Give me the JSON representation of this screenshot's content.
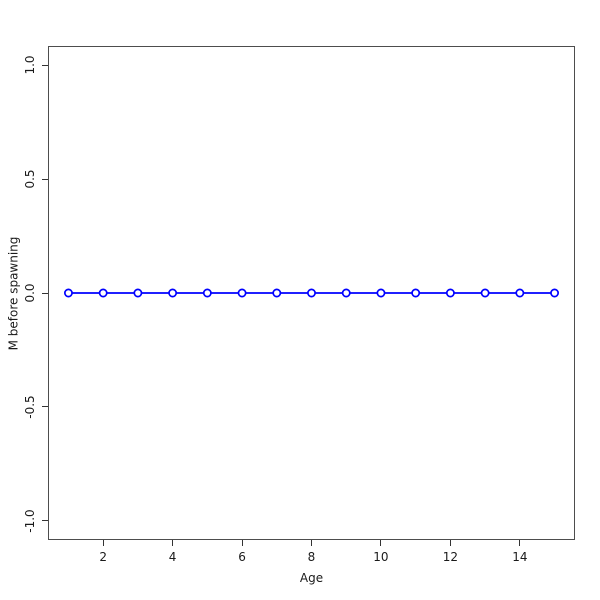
{
  "figure": {
    "background": "#ffffff",
    "frame_color": "#4d4d4d",
    "tick_color": "#333333",
    "text_color": "#1a1a1a"
  },
  "chart_data": {
    "type": "line",
    "title": "",
    "xlabel": "Age",
    "ylabel": "M before spawning",
    "x": [
      1,
      2,
      3,
      4,
      5,
      6,
      7,
      8,
      9,
      10,
      11,
      12,
      13,
      14,
      15
    ],
    "series": [
      {
        "name": "M before spawning",
        "color": "#0000ff",
        "marker": "open-circle",
        "marker_fill": "#ffffff",
        "values": [
          0,
          0,
          0,
          0,
          0,
          0,
          0,
          0,
          0,
          0,
          0,
          0,
          0,
          0,
          0
        ]
      }
    ],
    "xlim": [
      0.44,
      15.56
    ],
    "ylim": [
      -1.08,
      1.08
    ],
    "x_ticks": [
      {
        "value": 2,
        "label": "2"
      },
      {
        "value": 4,
        "label": "4"
      },
      {
        "value": 6,
        "label": "6"
      },
      {
        "value": 8,
        "label": "8"
      },
      {
        "value": 10,
        "label": "10"
      },
      {
        "value": 12,
        "label": "12"
      },
      {
        "value": 14,
        "label": "14"
      }
    ],
    "y_ticks": [
      {
        "value": -1.0,
        "label": "-1.0"
      },
      {
        "value": -0.5,
        "label": "-0.5"
      },
      {
        "value": 0.0,
        "label": "0.0"
      },
      {
        "value": 0.5,
        "label": "0.5"
      },
      {
        "value": 1.0,
        "label": "1.0"
      }
    ],
    "grid": false,
    "legend": "none",
    "frame": true
  }
}
